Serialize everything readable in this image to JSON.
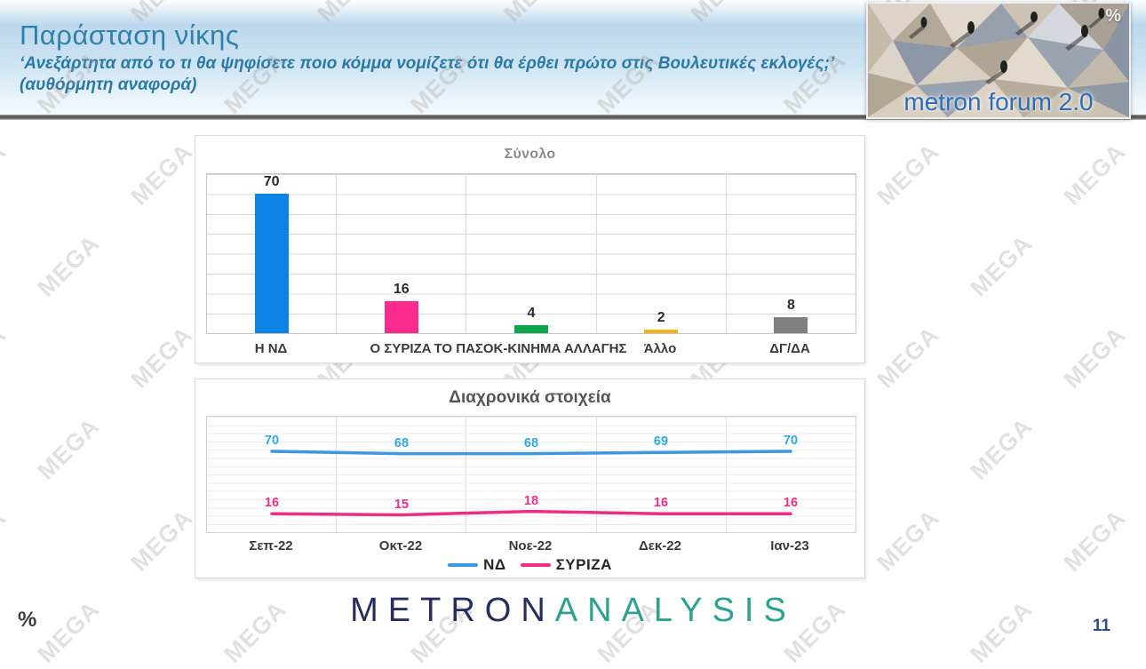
{
  "header": {
    "title": "Παράσταση νίκης",
    "subtitle": "‘Ανεξάρτητα από το τι θα ψηφίσετε ποιο κόμμα νομίζετε ότι θα έρθει πρώτο στις Βουλευτικές εκλογές;’ (αυθόρμητη αναφορά)",
    "logo": {
      "text": "metron forum 2.0",
      "percent": "%"
    }
  },
  "watermark": {
    "text": "MEGA"
  },
  "chart_data": [
    {
      "type": "bar",
      "title": "Σύνολο",
      "categories": [
        "Η ΝΔ",
        "Ο ΣΥΡΙΖΑ",
        "ΤΟ ΠΑΣΟΚ-ΚΙΝΗΜΑ ΑΛΛΑΓΗΣ",
        "Άλλο",
        "ΔΓ/ΔΑ"
      ],
      "values": [
        70,
        16,
        4,
        2,
        8
      ],
      "colors": [
        "#0b84e6",
        "#fb2b8d",
        "#0da64b",
        "#f0b514",
        "#7f7f7f"
      ],
      "ylim": [
        0,
        80
      ],
      "grid": true,
      "xlabel": "",
      "ylabel": ""
    },
    {
      "type": "line",
      "title": "Διαχρονικά στοιχεία",
      "x": [
        "Σεπ-22",
        "Οκτ-22",
        "Νοε-22",
        "Δεκ-22",
        "Ιαν-23"
      ],
      "series": [
        {
          "name": "ΝΔ",
          "color": "#3f97e0",
          "label_color": "#31a9e0",
          "values": [
            70,
            68,
            68,
            69,
            70
          ]
        },
        {
          "name": "ΣΥΡΙΖΑ",
          "color": "#ee2d87",
          "label_color": "#ee2d87",
          "values": [
            16,
            15,
            18,
            16,
            16
          ]
        }
      ],
      "ylim": [
        0,
        100
      ],
      "grid": true,
      "legend_position": "bottom"
    }
  ],
  "footer": {
    "logo_parts": [
      {
        "text": "METRON",
        "color": "#252e5d"
      },
      {
        "text": "ANALYSIS",
        "color": "#2ea18f"
      }
    ],
    "percent": "%",
    "page_number": "11"
  }
}
